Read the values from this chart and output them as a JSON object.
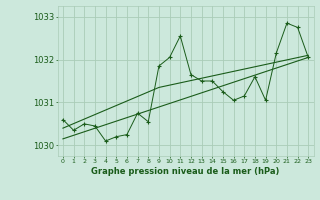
{
  "title": "Graphe pression niveau de la mer (hPa)",
  "bg_color": "#cce8dc",
  "grid_color": "#aaccb8",
  "line_color": "#1a5c1a",
  "ylim": [
    1029.75,
    1033.25
  ],
  "xlim": [
    -0.5,
    23.5
  ],
  "yticks": [
    1030,
    1031,
    1032,
    1033
  ],
  "ytick_labels": [
    "1030",
    "1031",
    "1032",
    "1033"
  ],
  "xtick_labels": [
    "0",
    "1",
    "2",
    "3",
    "4",
    "5",
    "6",
    "7",
    "8",
    "9",
    "10",
    "11",
    "12",
    "13",
    "14",
    "15",
    "16",
    "17",
    "18",
    "19",
    "20",
    "21",
    "22",
    "23"
  ],
  "pressure": [
    1030.6,
    1030.35,
    1030.5,
    1030.45,
    1030.1,
    1030.2,
    1030.25,
    1030.75,
    1030.55,
    1031.85,
    1032.05,
    1032.55,
    1031.65,
    1031.5,
    1031.5,
    1031.25,
    1031.05,
    1031.15,
    1031.6,
    1031.05,
    1032.15,
    1032.85,
    1032.75,
    1032.05
  ],
  "trend1_x": [
    0,
    23
  ],
  "trend1_y": [
    1030.15,
    1032.05
  ],
  "trend2_x": [
    0,
    9,
    23
  ],
  "trend2_y": [
    1030.4,
    1031.35,
    1032.1
  ]
}
